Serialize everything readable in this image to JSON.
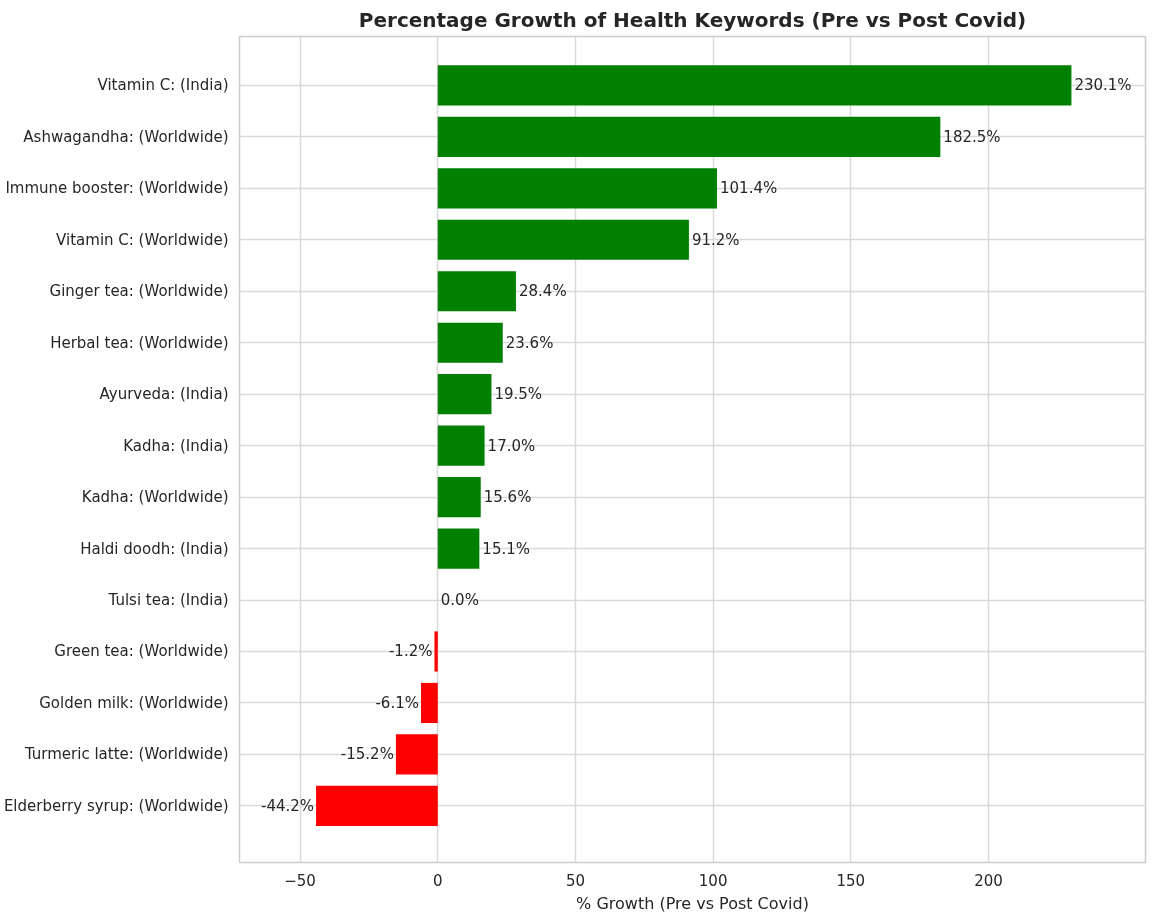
{
  "chart_data": {
    "type": "bar",
    "orientation": "horizontal",
    "title": "Percentage Growth of Health Keywords (Pre vs Post Covid)",
    "xlabel": "% Growth (Pre vs Post Covid)",
    "categories": [
      "Vitamin C: (India)",
      "Ashwagandha: (Worldwide)",
      "Immune booster: (Worldwide)",
      "Vitamin C: (Worldwide)",
      "Ginger tea: (Worldwide)",
      "Herbal tea: (Worldwide)",
      "Ayurveda: (India)",
      "Kadha: (India)",
      "Kadha: (Worldwide)",
      "Haldi doodh: (India)",
      "Tulsi tea: (India)",
      "Green tea: (Worldwide)",
      "Golden milk: (Worldwide)",
      "Turmeric latte: (Worldwide)",
      "Elderberry syrup: (Worldwide)"
    ],
    "values": [
      230.1,
      182.5,
      101.4,
      91.2,
      28.4,
      23.6,
      19.5,
      17.0,
      15.6,
      15.1,
      0.0,
      -1.2,
      -6.1,
      -15.2,
      -44.2
    ],
    "value_labels": [
      "230.1%",
      "182.5%",
      "101.4%",
      "91.2%",
      "28.4%",
      "23.6%",
      "19.5%",
      "17.0%",
      "15.6%",
      "15.1%",
      "0.0%",
      "-1.2%",
      "-6.1%",
      "-15.2%",
      "-44.2%"
    ],
    "colors": [
      "#008000",
      "#008000",
      "#008000",
      "#008000",
      "#008000",
      "#008000",
      "#008000",
      "#008000",
      "#008000",
      "#008000",
      "#008000",
      "#ff0000",
      "#ff0000",
      "#ff0000",
      "#ff0000"
    ],
    "xlim": [
      -72,
      257
    ],
    "xticks": [
      -50,
      0,
      50,
      100,
      150,
      200
    ],
    "grid": true
  }
}
